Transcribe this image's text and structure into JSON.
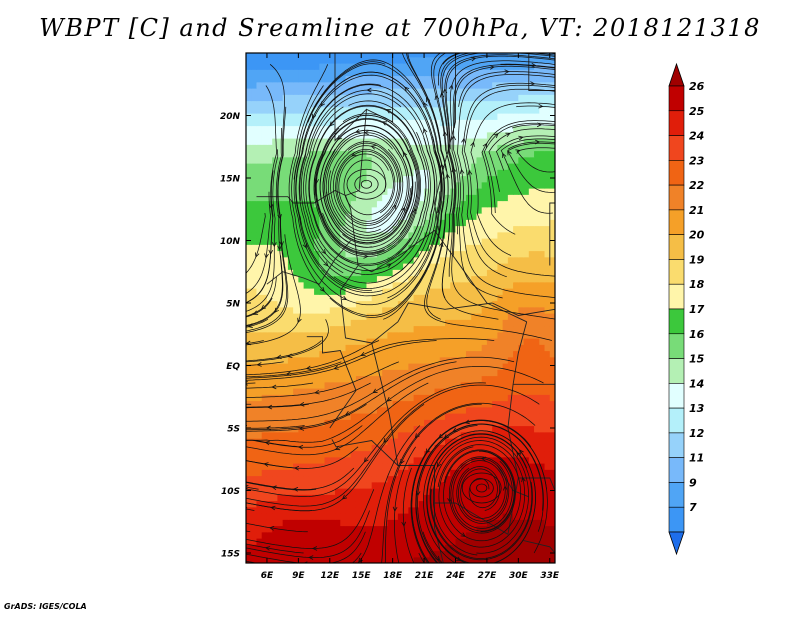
{
  "chart_data": {
    "type": "heatmap",
    "title": "WBPT [C] and Sreamline at 700hPa, VT: 2018121318",
    "xlabel": "",
    "ylabel": "",
    "x_ticks": [
      "6E",
      "9E",
      "12E",
      "15E",
      "18E",
      "21E",
      "24E",
      "27E",
      "30E",
      "33E"
    ],
    "x_tick_values": [
      6,
      9,
      12,
      15,
      18,
      21,
      24,
      27,
      30,
      33
    ],
    "y_ticks": [
      "20N",
      "15N",
      "10N",
      "5N",
      "EQ",
      "5S",
      "10S",
      "15S"
    ],
    "y_tick_values": [
      20,
      15,
      10,
      5,
      0,
      -5,
      -10,
      -15
    ],
    "xlim": [
      4,
      33.5
    ],
    "ylim": [
      -15.8,
      25
    ],
    "colorbar": {
      "labels": [
        "26",
        "25",
        "24",
        "23",
        "22",
        "21",
        "20",
        "19",
        "18",
        "17",
        "16",
        "15",
        "14",
        "13",
        "12",
        "11",
        "9",
        "7"
      ],
      "colors": [
        "#a00000",
        "#c00000",
        "#e01e0a",
        "#f0461e",
        "#f06414",
        "#f08228",
        "#f5a028",
        "#f5be46",
        "#fadc6e",
        "#fff5aa",
        "#3cc83c",
        "#78dc78",
        "#b4f0b4",
        "#e1ffff",
        "#b4f0fa",
        "#96d2fa",
        "#78b9fa",
        "#50a5f5",
        "#3c96f5",
        "#1e6eeb"
      ]
    },
    "features": {
      "cyclones": [
        {
          "lon": 15.5,
          "lat": 14.5
        },
        {
          "lon": 26.5,
          "lat": -9.8
        }
      ]
    }
  },
  "credit": "GrADS: IGES/COLA"
}
